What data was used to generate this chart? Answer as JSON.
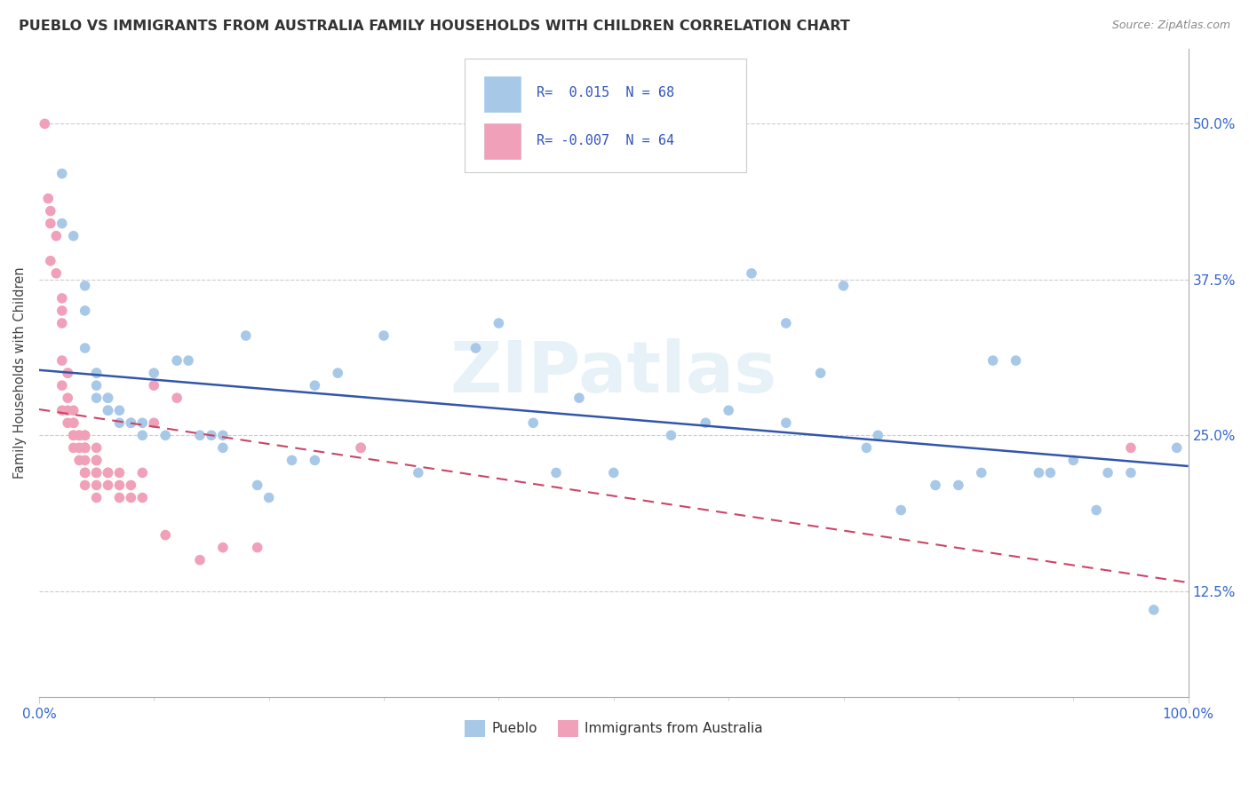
{
  "title": "PUEBLO VS IMMIGRANTS FROM AUSTRALIA FAMILY HOUSEHOLDS WITH CHILDREN CORRELATION CHART",
  "source_text": "Source: ZipAtlas.com",
  "ylabel": "Family Households with Children",
  "xlim": [
    0.0,
    1.0
  ],
  "ylim": [
    0.04,
    0.56
  ],
  "yticks": [
    0.125,
    0.25,
    0.375,
    0.5
  ],
  "ytick_labels": [
    "12.5%",
    "25.0%",
    "37.5%",
    "50.0%"
  ],
  "xticks": [
    0.0,
    1.0
  ],
  "xtick_labels": [
    "0.0%",
    "100.0%"
  ],
  "r1": 0.015,
  "n1": 68,
  "r2": -0.007,
  "n2": 64,
  "color_blue": "#A8C8E8",
  "color_pink": "#F0A0B8",
  "color_blue_line": "#3355AA",
  "color_pink_line": "#CC4466",
  "watermark": "ZIPatlas",
  "background_color": "#FFFFFF",
  "grid_color": "#CCCCCC",
  "blue_x": [
    0.02,
    0.02,
    0.03,
    0.04,
    0.04,
    0.04,
    0.05,
    0.05,
    0.05,
    0.05,
    0.06,
    0.06,
    0.06,
    0.06,
    0.07,
    0.07,
    0.08,
    0.08,
    0.09,
    0.09,
    0.1,
    0.11,
    0.12,
    0.13,
    0.14,
    0.15,
    0.16,
    0.16,
    0.18,
    0.19,
    0.2,
    0.22,
    0.24,
    0.24,
    0.26,
    0.28,
    0.3,
    0.33,
    0.38,
    0.4,
    0.43,
    0.45,
    0.47,
    0.5,
    0.55,
    0.58,
    0.6,
    0.62,
    0.65,
    0.65,
    0.68,
    0.7,
    0.72,
    0.73,
    0.75,
    0.78,
    0.8,
    0.82,
    0.83,
    0.85,
    0.87,
    0.88,
    0.9,
    0.92,
    0.93,
    0.95,
    0.97,
    0.99
  ],
  "blue_y": [
    0.46,
    0.42,
    0.41,
    0.37,
    0.35,
    0.32,
    0.3,
    0.3,
    0.29,
    0.28,
    0.28,
    0.28,
    0.27,
    0.27,
    0.27,
    0.26,
    0.26,
    0.26,
    0.26,
    0.25,
    0.3,
    0.25,
    0.31,
    0.31,
    0.25,
    0.25,
    0.24,
    0.25,
    0.33,
    0.21,
    0.2,
    0.23,
    0.29,
    0.23,
    0.3,
    0.24,
    0.33,
    0.22,
    0.32,
    0.34,
    0.26,
    0.22,
    0.28,
    0.22,
    0.25,
    0.26,
    0.27,
    0.38,
    0.34,
    0.26,
    0.3,
    0.37,
    0.24,
    0.25,
    0.19,
    0.21,
    0.21,
    0.22,
    0.31,
    0.31,
    0.22,
    0.22,
    0.23,
    0.19,
    0.22,
    0.22,
    0.11,
    0.24
  ],
  "pink_x": [
    0.005,
    0.008,
    0.01,
    0.01,
    0.01,
    0.015,
    0.015,
    0.02,
    0.02,
    0.02,
    0.02,
    0.02,
    0.02,
    0.025,
    0.025,
    0.025,
    0.025,
    0.025,
    0.03,
    0.03,
    0.03,
    0.03,
    0.03,
    0.03,
    0.035,
    0.035,
    0.035,
    0.035,
    0.04,
    0.04,
    0.04,
    0.04,
    0.04,
    0.04,
    0.04,
    0.04,
    0.04,
    0.05,
    0.05,
    0.05,
    0.05,
    0.05,
    0.05,
    0.05,
    0.05,
    0.06,
    0.06,
    0.06,
    0.07,
    0.07,
    0.07,
    0.08,
    0.08,
    0.09,
    0.09,
    0.1,
    0.1,
    0.11,
    0.12,
    0.14,
    0.16,
    0.19,
    0.28,
    0.95
  ],
  "pink_y": [
    0.5,
    0.44,
    0.42,
    0.39,
    0.43,
    0.41,
    0.38,
    0.36,
    0.35,
    0.34,
    0.31,
    0.29,
    0.27,
    0.3,
    0.3,
    0.28,
    0.27,
    0.26,
    0.27,
    0.26,
    0.26,
    0.25,
    0.25,
    0.24,
    0.25,
    0.25,
    0.24,
    0.23,
    0.25,
    0.25,
    0.24,
    0.24,
    0.24,
    0.23,
    0.22,
    0.22,
    0.21,
    0.24,
    0.23,
    0.23,
    0.23,
    0.22,
    0.22,
    0.21,
    0.2,
    0.22,
    0.22,
    0.21,
    0.22,
    0.21,
    0.2,
    0.21,
    0.2,
    0.22,
    0.2,
    0.26,
    0.29,
    0.17,
    0.28,
    0.15,
    0.16,
    0.16,
    0.24,
    0.24
  ]
}
